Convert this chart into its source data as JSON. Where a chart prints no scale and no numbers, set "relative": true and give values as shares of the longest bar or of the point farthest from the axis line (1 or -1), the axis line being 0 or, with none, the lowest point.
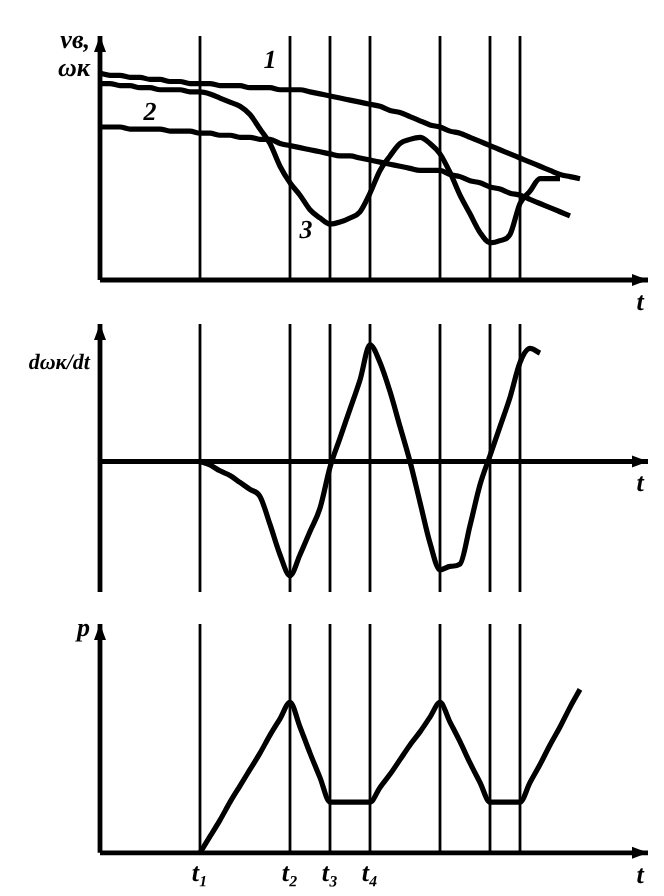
{
  "chart_data": [
    {
      "type": "line",
      "relative": true,
      "ylabel": "vв,\nωк",
      "xlabel": "t",
      "tick_labels": false,
      "categories": [
        null,
        null,
        null,
        null,
        null,
        null,
        null,
        null,
        null,
        null,
        null,
        null,
        null,
        null,
        null,
        null,
        null,
        null,
        null,
        null,
        null,
        null,
        null,
        null,
        null,
        null,
        null,
        null,
        null,
        null,
        null,
        null,
        null,
        null,
        null,
        null,
        null,
        null,
        null,
        null,
        null,
        null,
        null,
        null,
        null,
        null,
        null,
        null,
        null,
        null,
        null,
        null,
        null
      ],
      "grid": "x",
      "series": [
        {
          "name": "1",
          "color": "#000000",
          "values": [
            1.0,
            0.99,
            0.99,
            0.98,
            0.98,
            0.97,
            0.97,
            0.96,
            0.96,
            0.95,
            0.95,
            0.95,
            0.94,
            0.94,
            0.94,
            0.93,
            0.93,
            0.93,
            0.92,
            0.92,
            0.92,
            0.91,
            0.9,
            0.89,
            0.88,
            0.87,
            0.86,
            0.85,
            0.84,
            0.82,
            0.81,
            0.79,
            0.77,
            0.75,
            0.74,
            0.72,
            0.71,
            0.69,
            0.67,
            0.65,
            0.63,
            0.61,
            0.59,
            0.57,
            0.55,
            0.53,
            0.51,
            0.5,
            0.49,
            null,
            null,
            null,
            null
          ]
        },
        {
          "name": "2",
          "color": "#000000",
          "values": [
            0.74,
            0.74,
            0.74,
            0.73,
            0.73,
            0.73,
            0.73,
            0.72,
            0.72,
            0.72,
            0.71,
            0.71,
            0.7,
            0.7,
            0.69,
            0.69,
            0.68,
            0.68,
            0.66,
            0.65,
            0.64,
            0.63,
            0.62,
            0.61,
            0.6,
            0.6,
            0.59,
            0.58,
            0.57,
            0.56,
            0.55,
            0.54,
            0.53,
            0.53,
            0.53,
            0.51,
            0.5,
            0.48,
            0.47,
            0.45,
            0.44,
            0.42,
            0.41,
            0.39,
            0.37,
            0.35,
            0.33,
            0.31,
            null,
            null,
            null,
            null,
            null
          ]
        },
        {
          "name": "3",
          "color": "#000000",
          "values": [
            0.95,
            0.95,
            0.94,
            0.94,
            0.93,
            0.93,
            0.92,
            0.92,
            0.92,
            0.91,
            0.91,
            0.9,
            0.88,
            0.86,
            0.84,
            0.8,
            0.73,
            0.66,
            0.55,
            0.47,
            0.41,
            0.34,
            0.3,
            0.27,
            0.28,
            0.3,
            0.33,
            0.42,
            0.53,
            0.6,
            0.66,
            0.68,
            0.69,
            0.66,
            0.61,
            0.52,
            0.41,
            0.32,
            0.23,
            0.18,
            0.19,
            0.22,
            0.37,
            0.43,
            0.49,
            0.49,
            0.49,
            null,
            null,
            null,
            null,
            null,
            null
          ]
        }
      ]
    },
    {
      "type": "line",
      "relative": true,
      "ylabel": "dωк/dt",
      "xlabel": "t",
      "tick_labels": false,
      "categories": [
        null,
        null,
        null,
        null,
        null,
        null,
        null,
        null,
        null,
        null,
        null,
        null,
        null,
        null,
        null,
        null,
        null,
        null,
        null,
        null,
        null,
        null,
        null,
        null,
        null,
        null,
        null,
        null,
        null,
        null,
        null,
        null,
        null,
        null,
        null,
        null,
        null,
        null,
        null,
        null,
        null,
        null,
        null,
        null,
        null,
        null,
        null,
        null,
        null,
        null,
        null,
        null,
        null
      ],
      "grid": "x",
      "series": [
        {
          "color": "#000000",
          "values": [
            null,
            null,
            null,
            null,
            null,
            null,
            null,
            null,
            null,
            null,
            0,
            -0.03,
            -0.08,
            -0.12,
            -0.18,
            -0.24,
            -0.3,
            -0.54,
            -0.8,
            -0.98,
            -0.8,
            -0.6,
            -0.4,
            -0.05,
            0.2,
            0.45,
            0.7,
            1,
            0.85,
            0.6,
            0.3,
            0,
            -0.35,
            -0.7,
            -0.93,
            -0.9,
            -0.88,
            -0.55,
            -0.2,
            0.05,
            0.3,
            0.55,
            0.85,
            0.97,
            0.93,
            null,
            null,
            null,
            null,
            null,
            null,
            null,
            null
          ]
        }
      ]
    },
    {
      "type": "line",
      "relative": true,
      "ylabel": "p",
      "xlabel": "t",
      "tick_labels": "x",
      "categories": [
        null,
        null,
        null,
        null,
        null,
        null,
        null,
        null,
        null,
        null,
        "t₁",
        null,
        null,
        null,
        null,
        null,
        null,
        null,
        null,
        "t₂",
        null,
        null,
        null,
        "t₃",
        null,
        null,
        null,
        "t₄",
        null,
        null,
        null,
        null,
        null,
        null,
        null,
        null,
        null,
        null,
        null,
        null,
        null,
        null,
        null,
        null,
        null,
        null,
        null,
        null,
        null,
        null,
        null,
        null,
        null
      ],
      "grid": "x",
      "series": [
        {
          "color": "#000000",
          "values": [
            null,
            null,
            null,
            null,
            null,
            null,
            null,
            null,
            null,
            null,
            0,
            0.1,
            0.2,
            0.31,
            0.41,
            0.51,
            0.61,
            0.72,
            0.82,
            0.92,
            0.77,
            0.61,
            0.46,
            0.31,
            0.31,
            0.31,
            0.31,
            0.31,
            0.4,
            0.48,
            0.57,
            0.66,
            0.74,
            0.83,
            0.92,
            0.8,
            0.68,
            0.55,
            0.43,
            0.31,
            0.31,
            0.31,
            0.31,
            0.43,
            0.54,
            0.66,
            0.77,
            0.89,
            1,
            null,
            null,
            null,
            null
          ]
        }
      ]
    }
  ]
}
